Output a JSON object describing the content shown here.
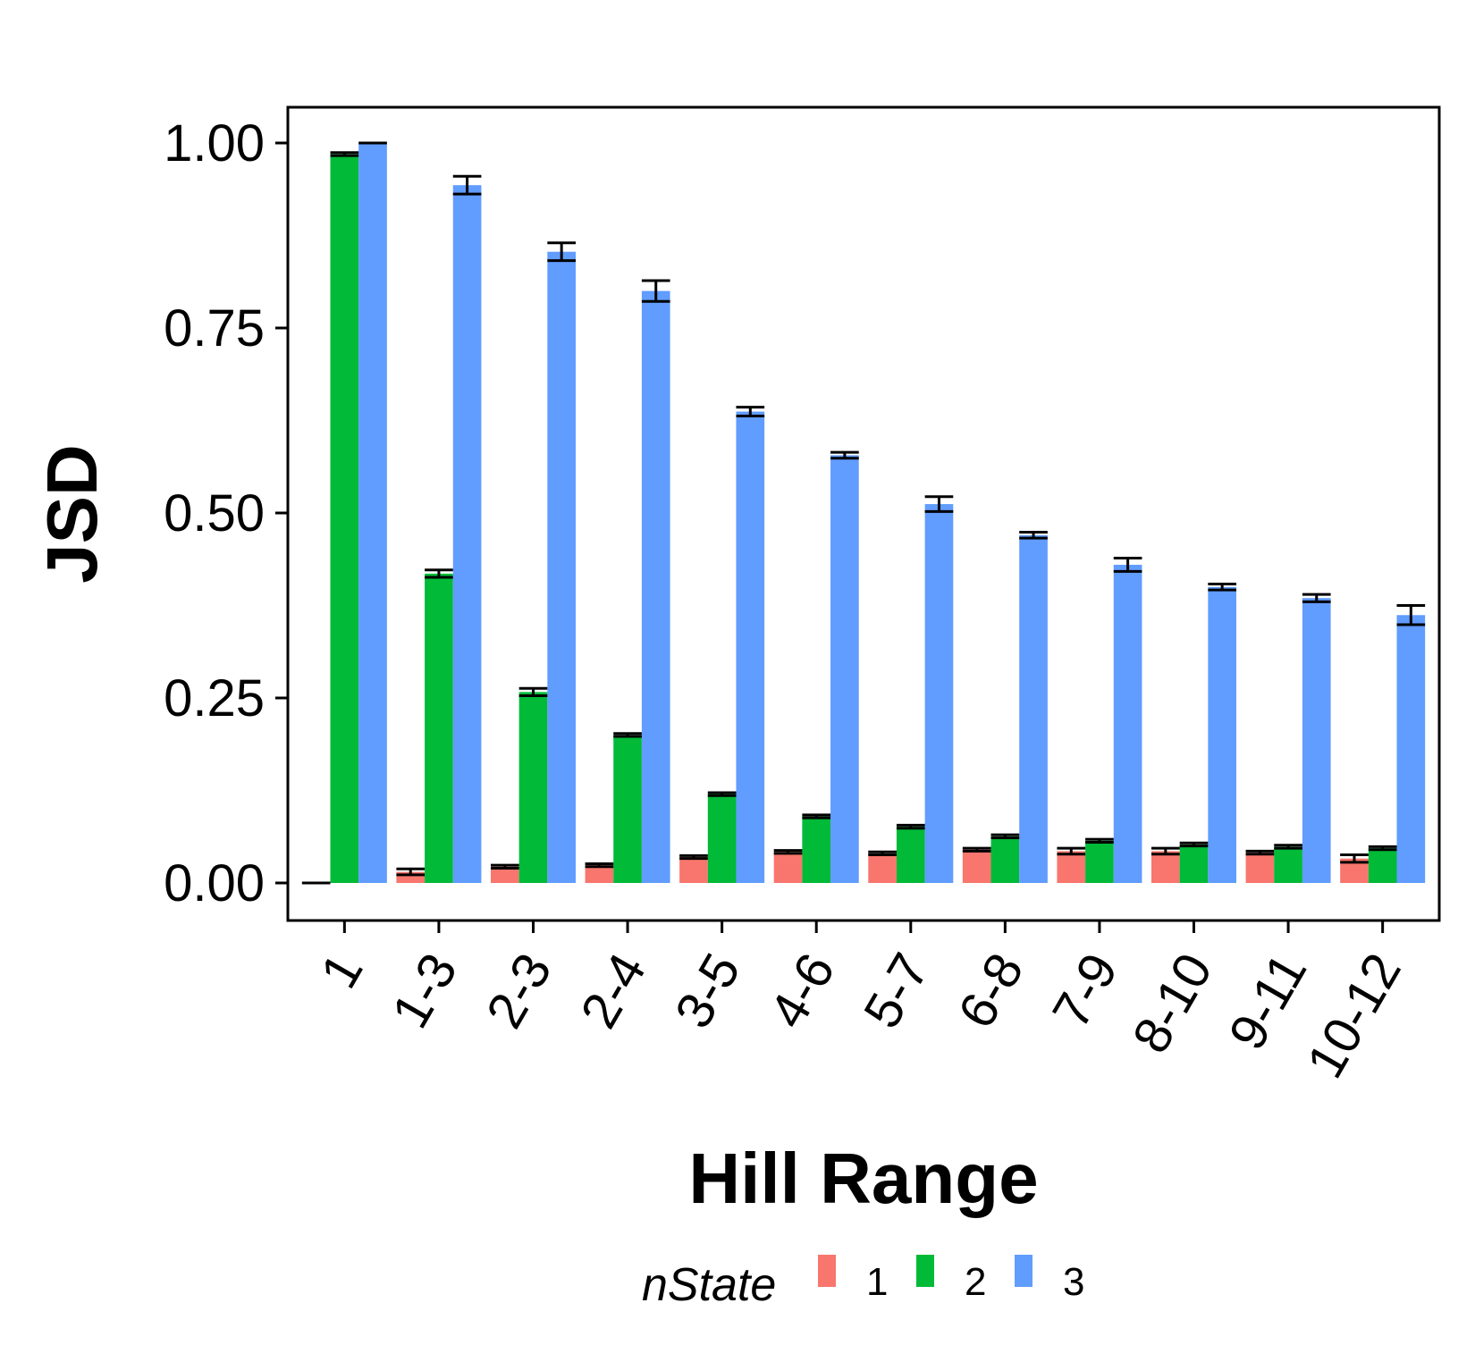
{
  "chart_data": {
    "type": "bar",
    "xlabel": "Hill Range",
    "ylabel": "JSD",
    "ylim": [
      0,
      1.05
    ],
    "yticks": [
      "0.00",
      "0.25",
      "0.50",
      "0.75",
      "1.00"
    ],
    "categories": [
      "1",
      "1-3",
      "2-3",
      "2-4",
      "3-5",
      "4-6",
      "5-7",
      "6-8",
      "7-9",
      "8-10",
      "9-11",
      "10-12"
    ],
    "legend": {
      "title": "nState",
      "position": "bottom"
    },
    "grid": false,
    "series": [
      {
        "name": "1",
        "color": "#F8766D",
        "values": [
          0.0,
          0.015,
          0.022,
          0.024,
          0.035,
          0.042,
          0.04,
          0.045,
          0.043,
          0.043,
          0.041,
          0.033
        ],
        "errors": [
          0.0,
          0.004,
          0.002,
          0.002,
          0.002,
          0.002,
          0.002,
          0.002,
          0.004,
          0.004,
          0.002,
          0.005
        ]
      },
      {
        "name": "2",
        "color": "#00BA38",
        "values": [
          0.985,
          0.418,
          0.258,
          0.2,
          0.12,
          0.09,
          0.076,
          0.063,
          0.057,
          0.052,
          0.049,
          0.047
        ],
        "errors": [
          0.002,
          0.005,
          0.005,
          0.002,
          0.002,
          0.002,
          0.002,
          0.002,
          0.002,
          0.002,
          0.002,
          0.002
        ]
      },
      {
        "name": "3",
        "color": "#619CFF",
        "values": [
          1.0,
          0.943,
          0.853,
          0.8,
          0.637,
          0.578,
          0.512,
          0.47,
          0.43,
          0.4,
          0.385,
          0.362
        ],
        "errors": [
          0.0,
          0.012,
          0.012,
          0.014,
          0.006,
          0.004,
          0.01,
          0.004,
          0.009,
          0.004,
          0.005,
          0.013
        ]
      }
    ]
  }
}
